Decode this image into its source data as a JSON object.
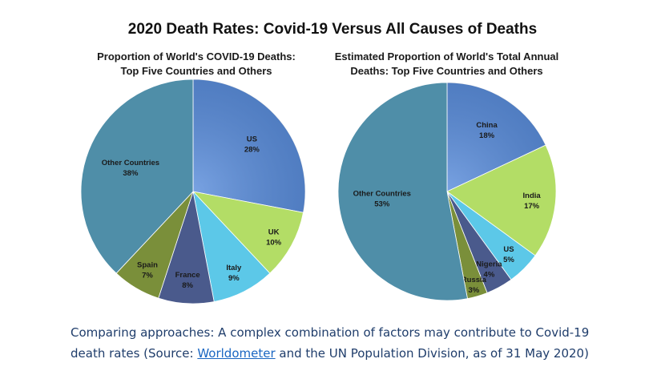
{
  "title": "2020 Death Rates: Covid-19 Versus All Causes of Deaths",
  "caption": {
    "line1": "Comparing approaches: A complex combination of factors may contribute to Covid-19",
    "line2_before": "death rates (Source: ",
    "link": "Worldometer",
    "line2_after": " and the UN Population Division, as of 31 May 2020)"
  },
  "chart_data": [
    {
      "type": "pie",
      "title_line1": "Proportion of World's COVID-19 Deaths:",
      "title_line2": "Top Five Countries and Others",
      "slices": [
        {
          "label": "US",
          "value": 28,
          "pct": "28%",
          "color": "#5b8edc"
        },
        {
          "label": "UK",
          "value": 10,
          "pct": "10%",
          "color": "#b3dd66"
        },
        {
          "label": "Italy",
          "value": 9,
          "pct": "9%",
          "color": "#5cc8e8"
        },
        {
          "label": "France",
          "value": 8,
          "pct": "8%",
          "color": "#4a5a8c"
        },
        {
          "label": "Spain",
          "value": 7,
          "pct": "7%",
          "color": "#7a8f3a"
        },
        {
          "label": "Other Countries",
          "value": 38,
          "pct": "38%",
          "color": "#4f8ea8"
        }
      ]
    },
    {
      "type": "pie",
      "title_line1": "Estimated Proportion of World's Total Annual",
      "title_line2": "Deaths: Top Five Countries and Others",
      "slices": [
        {
          "label": "China",
          "value": 18,
          "pct": "18%",
          "color": "#5b8edc"
        },
        {
          "label": "India",
          "value": 17,
          "pct": "17%",
          "color": "#b3dd66"
        },
        {
          "label": "US",
          "value": 5,
          "pct": "5%",
          "color": "#5cc8e8"
        },
        {
          "label": "Nigeria",
          "value": 4,
          "pct": "4%",
          "color": "#4a5a8c"
        },
        {
          "label": "Russia",
          "value": 3,
          "pct": "3%",
          "color": "#7a8f3a"
        },
        {
          "label": "Other Countries",
          "value": 53,
          "pct": "53%",
          "color": "#4f8ea8"
        }
      ]
    }
  ]
}
